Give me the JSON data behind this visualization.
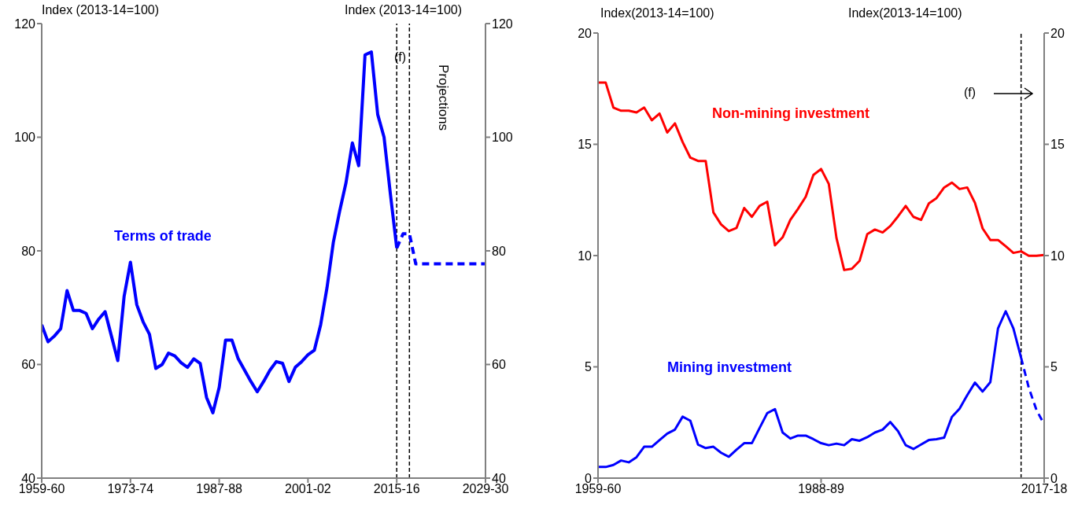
{
  "chart_data": [
    {
      "type": "line",
      "ylabel": "Index (2013-14=100)",
      "y2label": "Index (2013-14=100)",
      "categories": [
        "1959-60",
        null,
        null,
        null,
        null,
        null,
        null,
        null,
        null,
        null,
        null,
        null,
        null,
        null,
        "1973-74",
        null,
        null,
        null,
        null,
        null,
        null,
        null,
        null,
        null,
        null,
        null,
        null,
        null,
        "1987-88",
        null,
        null,
        null,
        null,
        null,
        null,
        null,
        null,
        null,
        null,
        null,
        null,
        null,
        "2001-02",
        null,
        null,
        null,
        null,
        null,
        null,
        null,
        null,
        null,
        null,
        null,
        null,
        null,
        "2015-16",
        null,
        null,
        null,
        null,
        null,
        null,
        null,
        null,
        null,
        null,
        null,
        null,
        null,
        "2029-30"
      ],
      "ylim": [
        40,
        120
      ],
      "yticks": [
        40,
        60,
        80,
        100,
        120
      ],
      "y2lim": [
        40,
        120
      ],
      "y2ticks": [
        40,
        60,
        80,
        100,
        120
      ],
      "series": [
        {
          "name": "Terms of trade",
          "color": "#0000ff",
          "line_style": "solid",
          "values": [
            67,
            64,
            65,
            66.3,
            73,
            69.5,
            69.5,
            69,
            66.3,
            68,
            69.3,
            65,
            60.7,
            72,
            78,
            70.5,
            67.5,
            65.3,
            59.3,
            60,
            62,
            61.5,
            60.3,
            59.5,
            61,
            60.2,
            54.2,
            51.5,
            56,
            64.3,
            64.3,
            61,
            59,
            57,
            55.2,
            57,
            59,
            60.5,
            60.2,
            57,
            59.5,
            60.5,
            61.7,
            62.5,
            67,
            73.5,
            81.5,
            87,
            92,
            99,
            95,
            114.5,
            115,
            104,
            100,
            90,
            80.5,
            null,
            null,
            null,
            null,
            null,
            null,
            null,
            null,
            null,
            null,
            null,
            null,
            null,
            null
          ]
        },
        {
          "color": "#0000ff",
          "line_style": "dashed",
          "values": [
            null,
            null,
            null,
            null,
            null,
            null,
            null,
            null,
            null,
            null,
            null,
            null,
            null,
            null,
            null,
            null,
            null,
            null,
            null,
            null,
            null,
            null,
            null,
            null,
            null,
            null,
            null,
            null,
            null,
            null,
            null,
            null,
            null,
            null,
            null,
            null,
            null,
            null,
            null,
            null,
            null,
            null,
            null,
            null,
            null,
            null,
            null,
            null,
            null,
            null,
            null,
            null,
            null,
            null,
            null,
            null,
            80.5,
            83,
            83,
            77.7,
            77.7,
            77.7,
            77.7,
            77.7,
            77.7,
            77.7,
            77.7,
            77.7,
            77.7,
            77.7,
            77.7
          ]
        }
      ],
      "ref_lines": [
        {
          "axis": "x",
          "value": "2015-16",
          "color": "#000000",
          "line_style": "dashed"
        },
        {
          "axis": "x",
          "value": "2017-18",
          "color": "#000000",
          "line_style": "dashed"
        }
      ],
      "annotations": [
        "(f)",
        "Projections"
      ]
    },
    {
      "type": "line",
      "ylabel": "Index(2013-14=100)",
      "y2label": "Index(2013-14=100)",
      "categories": [
        "1959-60",
        null,
        null,
        null,
        null,
        null,
        null,
        null,
        null,
        null,
        null,
        null,
        null,
        null,
        null,
        null,
        null,
        null,
        null,
        null,
        null,
        null,
        null,
        null,
        null,
        null,
        null,
        null,
        null,
        "1988-89",
        null,
        null,
        null,
        null,
        null,
        null,
        null,
        null,
        null,
        null,
        null,
        null,
        null,
        null,
        null,
        null,
        null,
        null,
        null,
        null,
        null,
        null,
        null,
        null,
        null,
        null,
        null,
        null,
        "2017-18"
      ],
      "ylim": [
        0,
        20
      ],
      "yticks": [
        0,
        5,
        10,
        15,
        20
      ],
      "y2lim": [
        0,
        20
      ],
      "y2ticks": [
        0,
        5,
        10,
        15,
        20
      ],
      "series": [
        {
          "name": "Non-mining investment",
          "color": "#ff0000",
          "line_style": "solid",
          "values": [
            17.77,
            17.77,
            16.65,
            16.51,
            16.51,
            16.43,
            16.65,
            16.08,
            16.38,
            15.53,
            15.94,
            15.1,
            14.4,
            14.25,
            14.25,
            11.94,
            11.4,
            11.1,
            11.24,
            12.14,
            11.74,
            12.23,
            12.42,
            10.46,
            10.82,
            11.6,
            12.1,
            12.64,
            13.62,
            13.89,
            13.22,
            10.79,
            9.35,
            9.41,
            9.76,
            10.96,
            11.17,
            11.04,
            11.33,
            11.76,
            12.23,
            11.74,
            11.6,
            12.34,
            12.58,
            13.06,
            13.28,
            12.99,
            13.06,
            12.37,
            11.22,
            10.7,
            10.7,
            10.42,
            10.12,
            10.19,
            9.99,
            9.99,
            10.03
          ]
        },
        {
          "name": "Mining investment",
          "color": "#0000ff",
          "line_style": "solid",
          "values": [
            0.5,
            0.5,
            0.59,
            0.79,
            0.71,
            0.94,
            1.41,
            1.41,
            1.71,
            2.0,
            2.18,
            2.76,
            2.58,
            1.51,
            1.35,
            1.41,
            1.14,
            0.96,
            1.28,
            1.57,
            1.57,
            2.25,
            2.92,
            3.1,
            2.05,
            1.78,
            1.91,
            1.91,
            1.75,
            1.57,
            1.48,
            1.55,
            1.48,
            1.75,
            1.68,
            1.84,
            2.05,
            2.18,
            2.52,
            2.11,
            1.48,
            1.31,
            1.51,
            1.71,
            1.75,
            1.82,
            2.75,
            3.12,
            3.73,
            4.29,
            3.89,
            4.31,
            6.73,
            7.5,
            6.73,
            5.41,
            null,
            null,
            null
          ]
        },
        {
          "color": "#0000ff",
          "line_style": "dashed",
          "values": [
            null,
            null,
            null,
            null,
            null,
            null,
            null,
            null,
            null,
            null,
            null,
            null,
            null,
            null,
            null,
            null,
            null,
            null,
            null,
            null,
            null,
            null,
            null,
            null,
            null,
            null,
            null,
            null,
            null,
            null,
            null,
            null,
            null,
            null,
            null,
            null,
            null,
            null,
            null,
            null,
            null,
            null,
            null,
            null,
            null,
            null,
            null,
            null,
            null,
            null,
            null,
            null,
            null,
            null,
            null,
            5.41,
            4.06,
            3.06,
            2.42
          ]
        }
      ],
      "ref_lines": [
        {
          "axis": "x",
          "value": "2014-15",
          "color": "#000000",
          "line_style": "dashed"
        }
      ],
      "annotations": [
        "(f)"
      ]
    }
  ]
}
